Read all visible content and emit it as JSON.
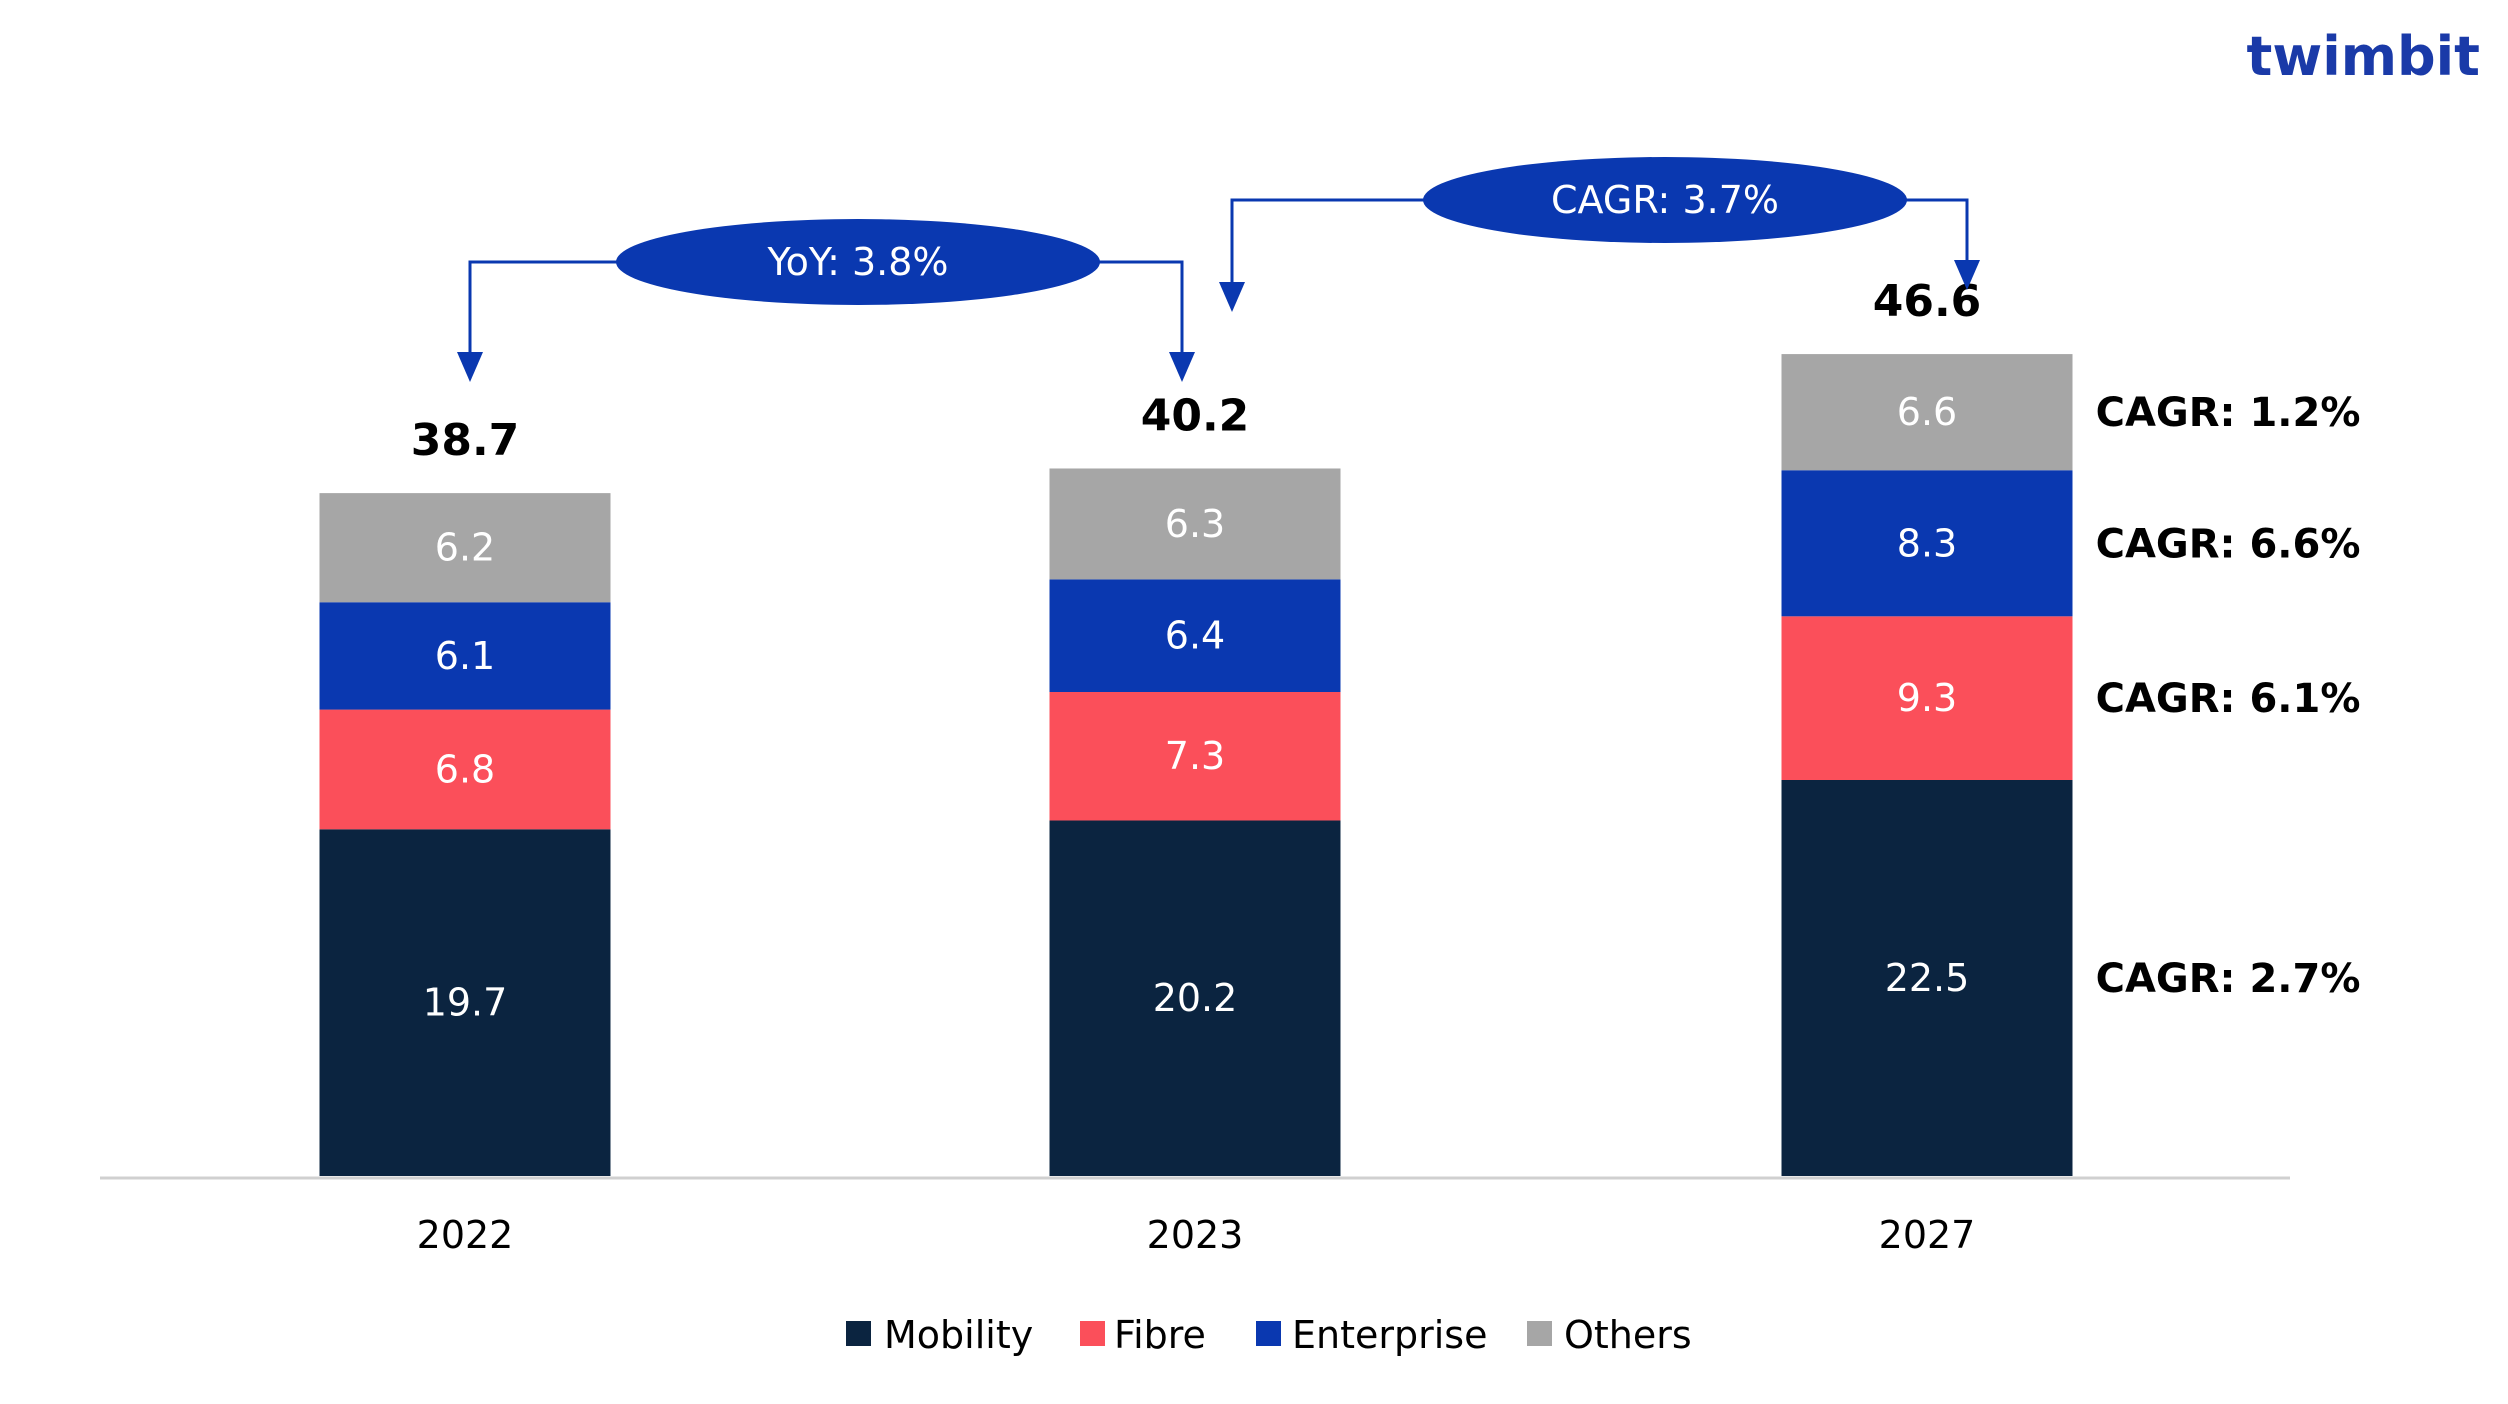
{
  "brand": {
    "name": "twimbit",
    "color": "#1a3aa8",
    "dot_color": "#e8313f"
  },
  "chart_data": {
    "type": "bar",
    "stacked": true,
    "categories": [
      "2022",
      "2023",
      "2027"
    ],
    "series": [
      {
        "name": "Mobility",
        "color": "#0b2440",
        "values": [
          19.7,
          20.2,
          22.5
        ],
        "labels": [
          "19.7",
          "20.2",
          "22.5"
        ]
      },
      {
        "name": "Fibre",
        "color": "#fb4f5a",
        "values": [
          6.8,
          7.3,
          9.3
        ],
        "labels": [
          "6.8",
          "7.3",
          "9.3"
        ]
      },
      {
        "name": "Enterprise",
        "color": "#0a38b0",
        "values": [
          6.1,
          6.4,
          8.3
        ],
        "labels": [
          "6.1",
          "6.4",
          "8.3"
        ]
      },
      {
        "name": "Others",
        "color": "#a6a6a6",
        "values": [
          6.2,
          6.3,
          6.6
        ],
        "labels": [
          "6.2",
          "6.3",
          "6.6"
        ]
      }
    ],
    "totals": [
      "38.7",
      "40.2",
      "46.6"
    ],
    "series_cagr": [
      "CAGR: 2.7%",
      "CAGR: 6.1%",
      "CAGR: 6.6%",
      "CAGR: 1.2%"
    ],
    "growth_callouts": [
      {
        "text": "YoY: 3.8%",
        "from": "2022",
        "to": "2023"
      },
      {
        "text": "CAGR: 3.7%",
        "from": "2023",
        "to": "2027"
      }
    ],
    "legend_position": "bottom",
    "grid": false,
    "title": "",
    "xlabel": "",
    "ylabel": ""
  }
}
